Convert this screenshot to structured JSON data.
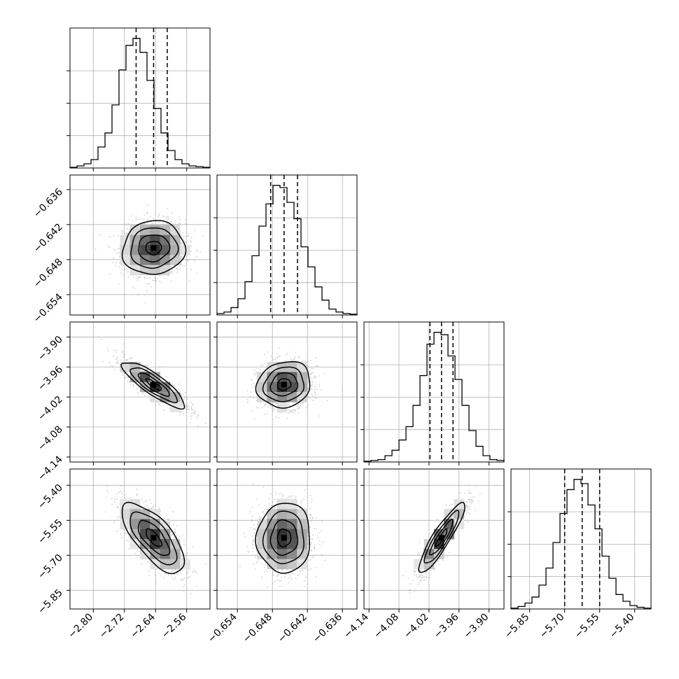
{
  "chart_data": {
    "type": "corner",
    "parameters": [
      {
        "id": "p1",
        "label": "",
        "range": [
          -2.86,
          -2.5
        ],
        "ticks": [
          "−2.80",
          "−2.72",
          "−2.64",
          "−2.56"
        ],
        "tick_values": [
          -2.8,
          -2.72,
          -2.64,
          -2.56
        ],
        "quantiles": [
          -2.69,
          -2.645,
          -2.61
        ],
        "histogram": [
          1,
          3,
          6,
          12,
          30,
          50,
          90,
          140,
          175,
          185,
          165,
          125,
          85,
          50,
          25,
          12,
          6,
          3,
          2,
          1
        ]
      },
      {
        "id": "p2",
        "label": "",
        "range": [
          -0.6575,
          -0.6335
        ],
        "ticks": [
          "−0.654",
          "−0.648",
          "−0.642",
          "−0.636"
        ],
        "tick_values": [
          -0.654,
          -0.648,
          -0.642,
          -0.636
        ],
        "quantiles": [
          -0.6483,
          -0.646,
          -0.6437
        ],
        "histogram": [
          2,
          4,
          10,
          22,
          45,
          80,
          120,
          150,
          175,
          172,
          152,
          130,
          92,
          65,
          38,
          20,
          8,
          4,
          2,
          1
        ]
      },
      {
        "id": "p3",
        "label": "",
        "range": [
          -4.15,
          -3.87
        ],
        "ticks": [
          "−4.14",
          "−4.08",
          "−4.02",
          "−3.96",
          "−3.90"
        ],
        "tick_values": [
          -4.14,
          -4.08,
          -4.02,
          -3.96,
          -3.9
        ],
        "quantiles": [
          -4.018,
          -3.995,
          -3.972
        ],
        "histogram": [
          1,
          2,
          3,
          8,
          15,
          28,
          45,
          72,
          110,
          150,
          165,
          162,
          135,
          105,
          72,
          40,
          20,
          8,
          3,
          2
        ]
      },
      {
        "id": "p4",
        "label": "",
        "range": [
          -5.93,
          -5.33
        ],
        "ticks": [
          "−5.85",
          "−5.70",
          "−5.55",
          "−5.40"
        ],
        "tick_values": [
          -5.85,
          -5.7,
          -5.55,
          -5.4
        ],
        "quantiles": [
          -5.7,
          -5.625,
          -5.55
        ],
        "histogram": [
          1,
          3,
          7,
          14,
          28,
          48,
          78,
          112,
          140,
          152,
          147,
          122,
          94,
          62,
          36,
          17,
          9,
          4,
          2,
          1
        ]
      }
    ],
    "correlations": {
      "p2_p1": 0.05,
      "p3_p1": -0.85,
      "p3_p2": 0.12,
      "p4_p1": -0.7,
      "p4_p2": 0.03,
      "p4_p3": 0.9
    },
    "contour_levels_sigma": [
      0.5,
      1.0,
      1.5,
      2.0
    ],
    "grid": true,
    "quantile_line_style": "dashed"
  }
}
